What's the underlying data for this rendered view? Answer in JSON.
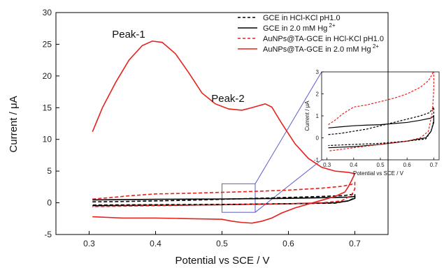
{
  "chart_data": [
    {
      "type": "line",
      "xlabel": "Potential vs SCE / V",
      "ylabel": "Current / μA",
      "xlim": [
        0.25,
        0.75
      ],
      "ylim": [
        -5,
        30
      ],
      "x_ticks": [
        "0.3",
        "0.4",
        "0.5",
        "0.6",
        "0.7"
      ],
      "y_ticks": [
        "-5",
        "0",
        "5",
        "10",
        "15",
        "20",
        "25",
        "30"
      ],
      "x_tick_values": [
        0.3,
        0.4,
        0.5,
        0.6,
        0.7
      ],
      "y_tick_values": [
        -5,
        0,
        5,
        10,
        15,
        20,
        25,
        30
      ],
      "legend_position": "top-right",
      "annotations": [
        {
          "text": "Peak-1",
          "x": 0.4,
          "y": 27.2
        },
        {
          "text": "Peak-2",
          "x": 0.55,
          "y": 17.2
        }
      ],
      "series": [
        {
          "name": "GCE in HCl-KCl pH1.0",
          "color": "#000000",
          "style": "dashed",
          "points": [
            [
              0.305,
              0.15
            ],
            [
              0.35,
              0.2
            ],
            [
              0.4,
              0.3
            ],
            [
              0.45,
              0.4
            ],
            [
              0.5,
              0.55
            ],
            [
              0.55,
              0.7
            ],
            [
              0.6,
              0.85
            ],
            [
              0.65,
              1.0
            ],
            [
              0.685,
              1.15
            ],
            [
              0.7,
              1.4
            ],
            [
              0.7,
              0.8
            ],
            [
              0.69,
              0.3
            ],
            [
              0.67,
              -0.05
            ],
            [
              0.6,
              -0.15
            ],
            [
              0.5,
              -0.25
            ],
            [
              0.4,
              -0.3
            ],
            [
              0.305,
              -0.35
            ]
          ]
        },
        {
          "name": "GCE in 2.0 mM Hg",
          "name_sup": "2+",
          "color": "#000000",
          "style": "solid",
          "points": [
            [
              0.305,
              0.45
            ],
            [
              0.35,
              0.5
            ],
            [
              0.4,
              0.55
            ],
            [
              0.45,
              0.58
            ],
            [
              0.5,
              0.6
            ],
            [
              0.55,
              0.65
            ],
            [
              0.6,
              0.7
            ],
            [
              0.65,
              0.8
            ],
            [
              0.69,
              0.9
            ],
            [
              0.7,
              1.0
            ],
            [
              0.7,
              0.7
            ],
            [
              0.69,
              0.3
            ],
            [
              0.67,
              0.0
            ],
            [
              0.6,
              -0.15
            ],
            [
              0.5,
              -0.3
            ],
            [
              0.4,
              -0.4
            ],
            [
              0.305,
              -0.45
            ]
          ]
        },
        {
          "name": "AuNPs@TA-GCE in HCl-KCl pH1.0",
          "color": "#e8201c",
          "style": "dashed",
          "points": [
            [
              0.305,
              0.6
            ],
            [
              0.33,
              0.8
            ],
            [
              0.36,
              1.1
            ],
            [
              0.4,
              1.4
            ],
            [
              0.45,
              1.5
            ],
            [
              0.5,
              1.65
            ],
            [
              0.55,
              1.8
            ],
            [
              0.6,
              2.0
            ],
            [
              0.65,
              2.3
            ],
            [
              0.68,
              2.6
            ],
            [
              0.695,
              2.9
            ],
            [
              0.7,
              3.2
            ],
            [
              0.7,
              2.2
            ],
            [
              0.695,
              1.2
            ],
            [
              0.68,
              0.3
            ],
            [
              0.65,
              0.0
            ],
            [
              0.6,
              -0.15
            ],
            [
              0.5,
              -0.3
            ],
            [
              0.4,
              -0.45
            ],
            [
              0.305,
              -0.6
            ]
          ]
        },
        {
          "name": "AuNPs@TA-GCE in 2.0 mM Hg",
          "name_sup": "2+",
          "color": "#e8201c",
          "style": "solid",
          "points": [
            [
              0.305,
              11.2
            ],
            [
              0.32,
              15.0
            ],
            [
              0.34,
              19.0
            ],
            [
              0.36,
              22.5
            ],
            [
              0.38,
              24.8
            ],
            [
              0.395,
              25.5
            ],
            [
              0.41,
              25.3
            ],
            [
              0.43,
              23.5
            ],
            [
              0.45,
              20.5
            ],
            [
              0.47,
              17.3
            ],
            [
              0.49,
              15.6
            ],
            [
              0.51,
              14.8
            ],
            [
              0.53,
              14.6
            ],
            [
              0.545,
              15.0
            ],
            [
              0.565,
              15.6
            ],
            [
              0.575,
              15.1
            ],
            [
              0.59,
              12.5
            ],
            [
              0.61,
              9.3
            ],
            [
              0.63,
              7.0
            ],
            [
              0.65,
              5.6
            ],
            [
              0.67,
              5.0
            ],
            [
              0.69,
              4.8
            ],
            [
              0.7,
              4.6
            ],
            [
              0.695,
              3.5
            ],
            [
              0.69,
              2.5
            ],
            [
              0.685,
              1.7
            ],
            [
              0.67,
              1.0
            ],
            [
              0.65,
              0.4
            ],
            [
              0.63,
              -0.2
            ],
            [
              0.61,
              -0.8
            ],
            [
              0.59,
              -1.6
            ],
            [
              0.575,
              -2.4
            ],
            [
              0.56,
              -2.9
            ],
            [
              0.545,
              -3.2
            ],
            [
              0.53,
              -3.1
            ],
            [
              0.515,
              -2.9
            ],
            [
              0.5,
              -2.6
            ],
            [
              0.45,
              -2.5
            ],
            [
              0.4,
              -2.4
            ],
            [
              0.35,
              -2.4
            ],
            [
              0.305,
              -2.2
            ]
          ]
        }
      ]
    },
    {
      "type": "line",
      "role": "inset",
      "xlabel": "Potential vs SCE / V",
      "ylabel": "Current / μA",
      "xlim": [
        0.28,
        0.72
      ],
      "ylim": [
        -1,
        3
      ],
      "x_ticks": [
        "0.3",
        "0.4",
        "0.5",
        "0.6",
        "0.7"
      ],
      "y_ticks": [
        "-1",
        "0",
        "1",
        "2",
        "3"
      ],
      "x_tick_values": [
        0.3,
        0.4,
        0.5,
        0.6,
        0.7
      ],
      "y_tick_values": [
        -1,
        0,
        1,
        2,
        3
      ],
      "zoom_region": {
        "x": [
          0.5,
          0.55
        ],
        "y": [
          -1.5,
          3
        ]
      }
    }
  ]
}
